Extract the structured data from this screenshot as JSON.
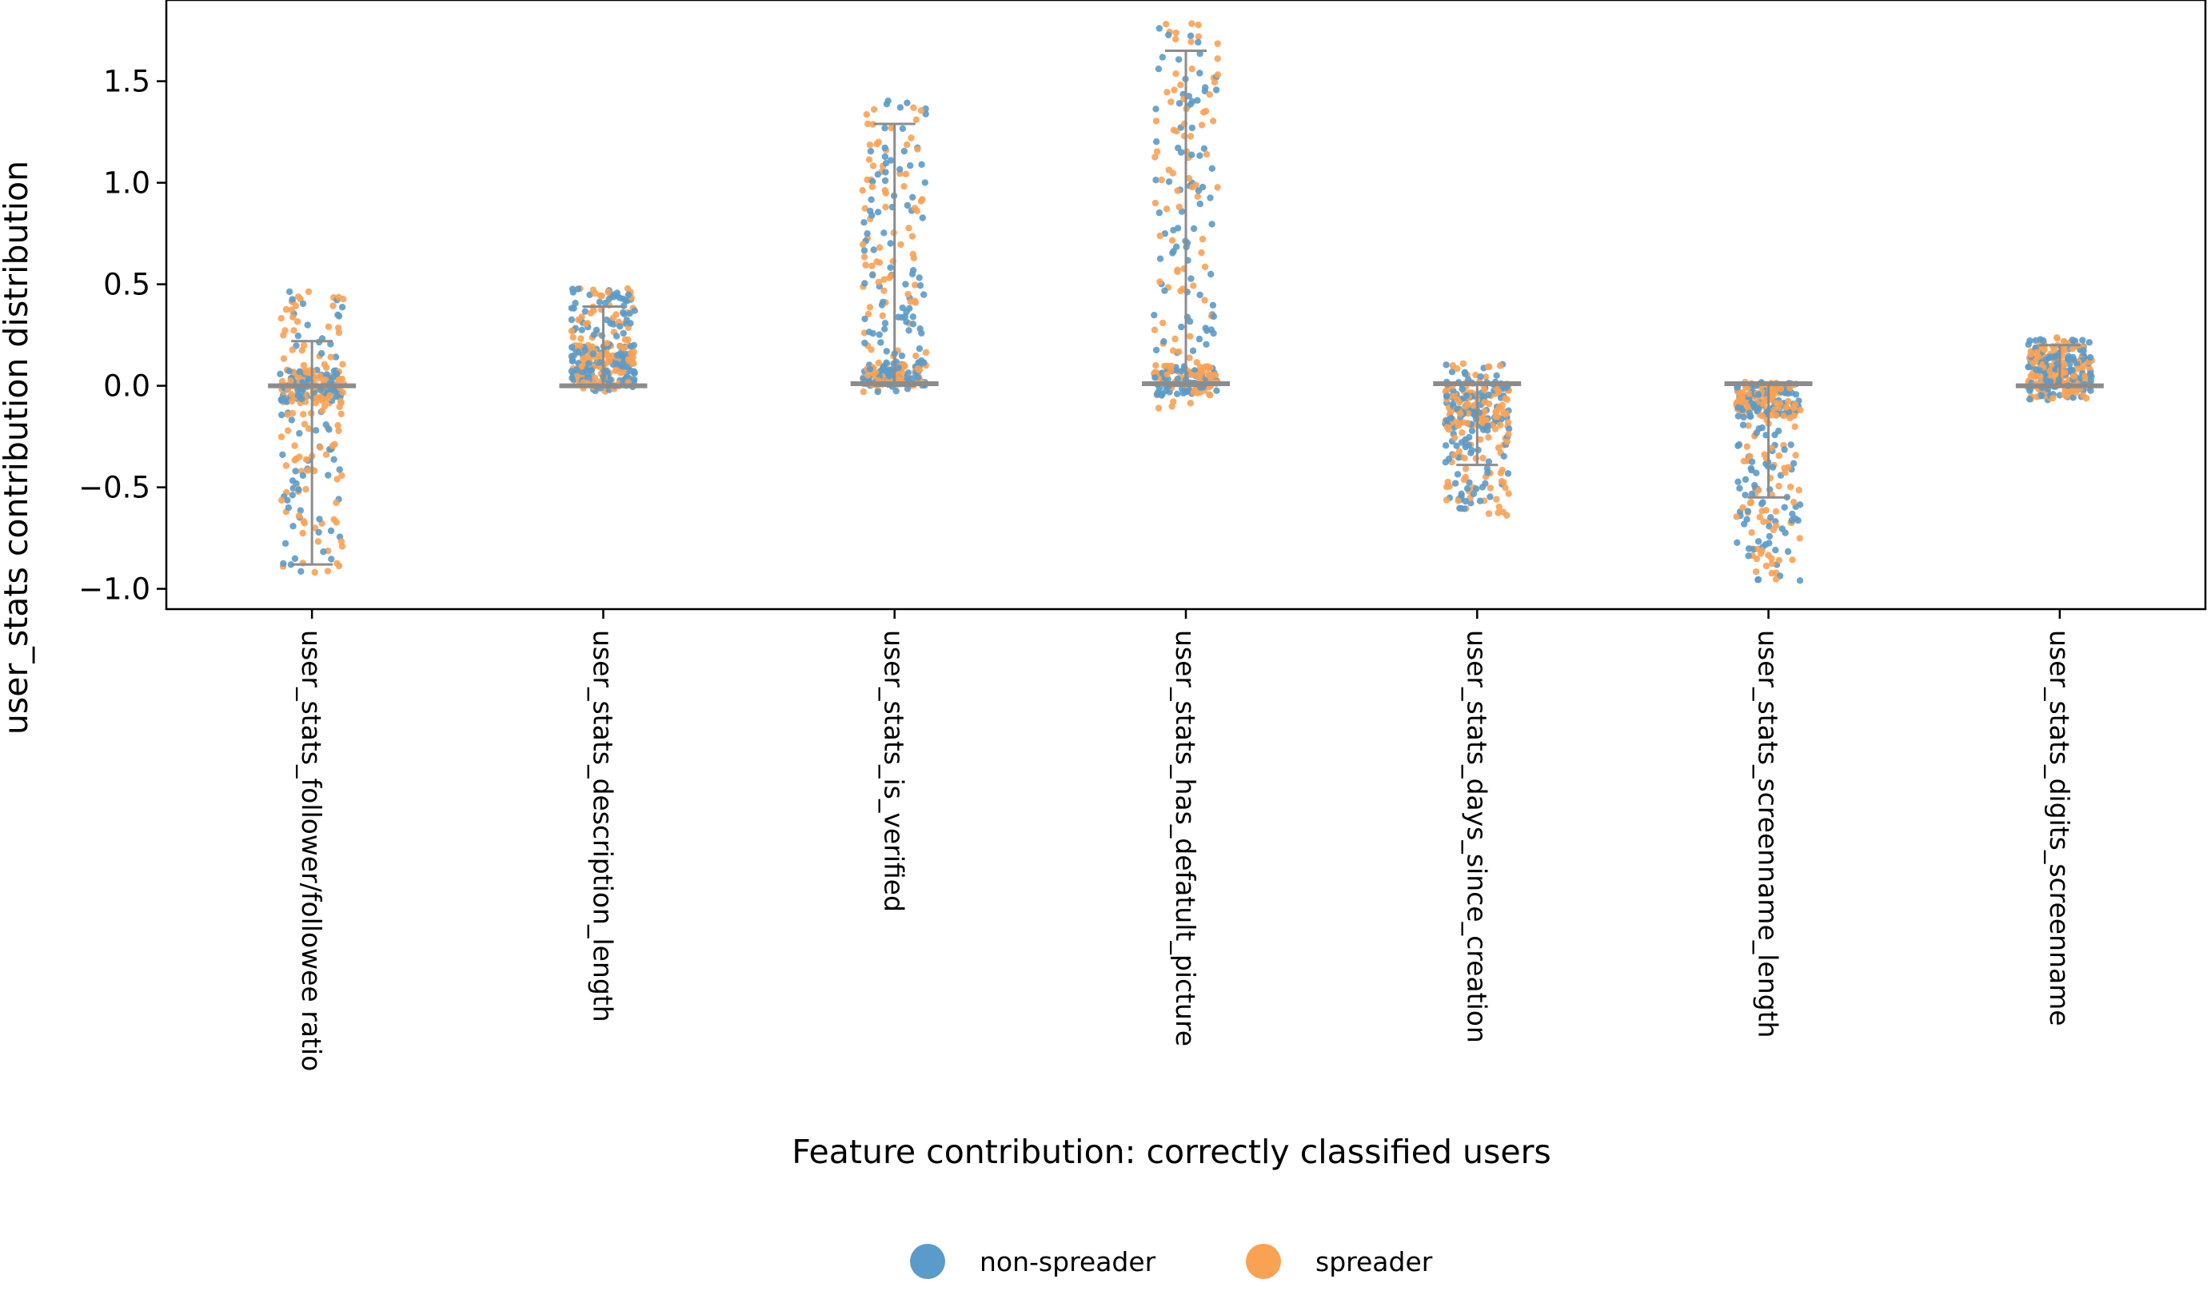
{
  "chart_data": {
    "type": "scatter",
    "subtype": "strip-plot-with-error-bars",
    "xlabel": "Feature contribution: correctly classified users",
    "ylabel": "user_stats contribution distribution",
    "ylim": [
      -1.1,
      1.9
    ],
    "yticks": [
      -1.0,
      -0.5,
      0.0,
      0.5,
      1.0,
      1.5
    ],
    "ytick_labels": [
      "−1.0",
      "−0.5",
      "0.0",
      "0.5",
      "1.0",
      "1.5"
    ],
    "categories": [
      "user_stats_follower/followee ratio",
      "user_stats_description_length",
      "user_stats_is_verified",
      "user_stats_has_defatult_picture",
      "user_stats_days_since_creation",
      "user_stats_screenname_length",
      "user_stats_digits_screenname"
    ],
    "distributions": [
      {
        "median": 0.0,
        "ci": [
          -0.88,
          0.22
        ],
        "min": -0.92,
        "max": 0.48,
        "dense": [
          -0.08,
          0.08
        ]
      },
      {
        "median": 0.0,
        "ci": [
          0.0,
          0.39
        ],
        "min": -0.04,
        "max": 0.48,
        "dense": [
          0.0,
          0.2
        ]
      },
      {
        "median": 0.01,
        "ci": [
          0.0,
          1.29
        ],
        "min": -0.04,
        "max": 1.41,
        "dense": [
          0.0,
          0.12
        ]
      },
      {
        "median": 0.01,
        "ci": [
          0.0,
          1.65
        ],
        "min": -0.11,
        "max": 1.82,
        "dense": [
          -0.05,
          0.1
        ]
      },
      {
        "median": 0.01,
        "ci": [
          -0.39,
          0.01
        ],
        "min": -0.64,
        "max": 0.11,
        "dense": [
          -0.2,
          0.02
        ]
      },
      {
        "median": 0.01,
        "ci": [
          -0.55,
          0.01
        ],
        "min": -0.96,
        "max": 0.02,
        "dense": [
          -0.15,
          0.02
        ]
      },
      {
        "median": 0.0,
        "ci": [
          0.0,
          0.2
        ],
        "min": -0.07,
        "max": 0.24,
        "dense": [
          0.0,
          0.15
        ]
      }
    ],
    "legend": {
      "placement": "bottom-center",
      "entries": [
        {
          "label": "non-spreader",
          "color": "#1f77b4"
        },
        {
          "label": "spreader",
          "color": "#ff7f0e"
        }
      ]
    },
    "colors": {
      "non_spreader": "#5b9bc9",
      "spreader": "#f9a254",
      "errorbar": "#8c8c8c"
    },
    "grid": false
  }
}
